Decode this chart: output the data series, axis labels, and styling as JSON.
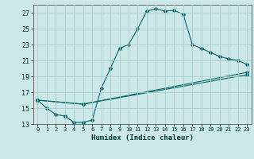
{
  "title": "",
  "xlabel": "Humidex (Indice chaleur)",
  "bg_color": "#cce8e8",
  "grid_color": "#aacccc",
  "line_color": "#006666",
  "xlim": [
    -0.5,
    23.5
  ],
  "ylim": [
    13,
    28
  ],
  "xticks": [
    0,
    1,
    2,
    3,
    4,
    5,
    6,
    7,
    8,
    9,
    10,
    11,
    12,
    13,
    14,
    15,
    16,
    17,
    18,
    19,
    20,
    21,
    22,
    23
  ],
  "yticks": [
    13,
    15,
    17,
    19,
    21,
    23,
    25,
    27
  ],
  "line1_x": [
    0,
    1,
    2,
    3,
    4,
    5,
    6,
    7,
    8,
    9,
    10,
    11,
    12,
    13,
    14,
    15,
    16,
    17,
    18,
    19,
    20,
    21,
    22,
    23
  ],
  "line1_y": [
    16.0,
    15.0,
    14.2,
    14.0,
    13.2,
    13.2,
    13.5,
    17.5,
    20.0,
    22.5,
    23.0,
    25.0,
    27.2,
    27.5,
    27.2,
    27.3,
    26.8,
    23.0,
    22.5,
    22.0,
    21.5,
    21.2,
    21.0,
    20.5
  ],
  "line2_x": [
    0,
    5,
    23
  ],
  "line2_y": [
    16.0,
    15.5,
    19.5
  ],
  "line3_x": [
    0,
    5,
    23
  ],
  "line3_y": [
    16.0,
    15.5,
    19.2
  ]
}
